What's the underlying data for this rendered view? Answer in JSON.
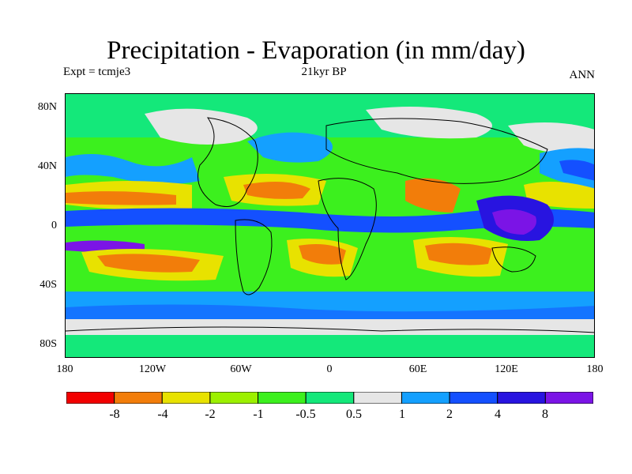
{
  "header": {
    "title": "Precipitation - Evaporation (in mm/day)",
    "expt": "Expt = tcmje3",
    "period": "21kyr BP",
    "season": "ANN"
  },
  "axes": {
    "lat_ticks": [
      "80N",
      "40N",
      "0",
      "40S",
      "80S"
    ],
    "lon_ticks": [
      "180",
      "120W",
      "60W",
      "0",
      "60E",
      "120E",
      "180"
    ]
  },
  "colorbar": {
    "colors": [
      "#f20000",
      "#f27d0a",
      "#e8e200",
      "#9cf000",
      "#3cf01e",
      "#14e87a",
      "#e6e6e6",
      "#14a0ff",
      "#1450ff",
      "#2814e0",
      "#7b14e6"
    ],
    "labels": [
      "-8",
      "-4",
      "-2",
      "-1",
      "-0.5",
      "0.5",
      "1",
      "2",
      "4",
      "8"
    ]
  }
}
